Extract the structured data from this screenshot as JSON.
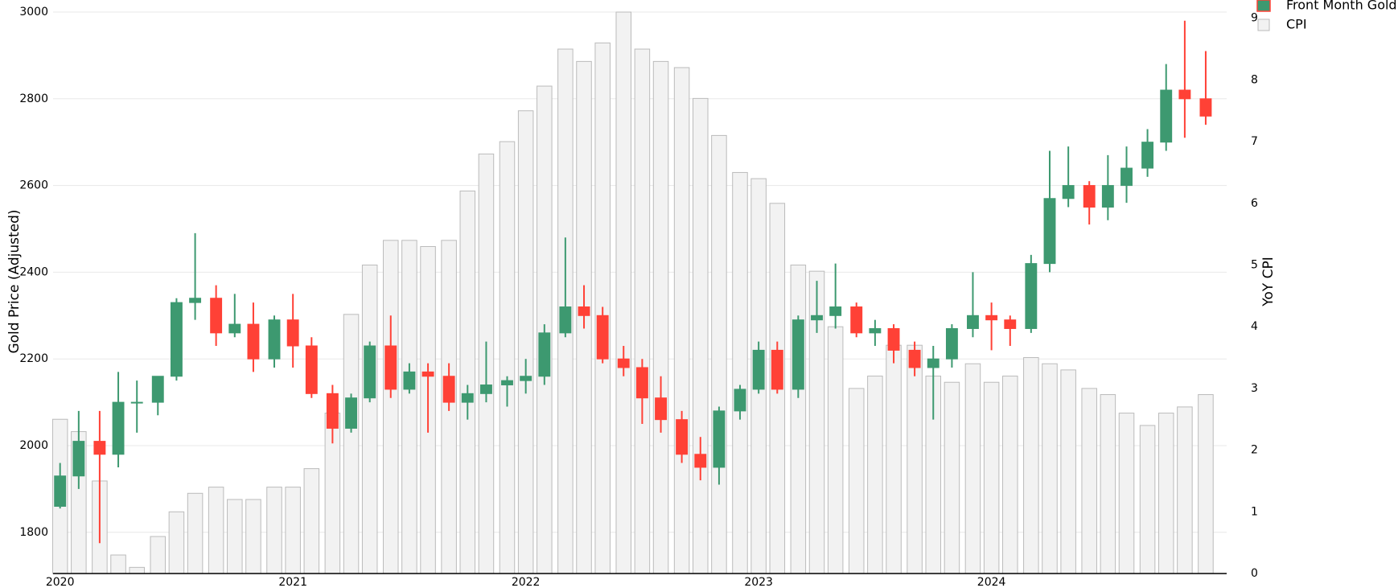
{
  "chart_data": {
    "type": "candlestick",
    "ylabel": "Gold Price (Adjusted)",
    "y2label": "YoY CPI",
    "x": [
      2020,
      2020.08,
      2020.17,
      2020.25,
      2020.33,
      2020.42,
      2020.5,
      2020.58,
      2020.67,
      2020.75,
      2020.83,
      2020.92,
      2021,
      2021.08,
      2021.17,
      2021.25,
      2021.33,
      2021.42,
      2021.5,
      2021.58,
      2021.67,
      2021.75,
      2021.83,
      2021.92,
      2022,
      2022.08,
      2022.17,
      2022.25,
      2022.33,
      2022.42,
      2022.5,
      2022.58,
      2022.67,
      2022.75,
      2022.83,
      2022.92,
      2023,
      2023.08,
      2023.17,
      2023.25,
      2023.33,
      2023.42,
      2023.5,
      2023.58,
      2023.67,
      2023.75,
      2023.83,
      2023.92,
      2024,
      2024.08,
      2024.17,
      2024.25,
      2024.33,
      2024.42,
      2024.5,
      2024.58,
      2024.67,
      2024.75,
      2024.83,
      2024.92
    ],
    "xlim": [
      2019.97,
      2025.01
    ],
    "xticks": [
      2020,
      2021,
      2022,
      2023,
      2024
    ],
    "ylim": [
      1705,
      3000
    ],
    "yticks": [
      1800,
      2000,
      2200,
      2400,
      2600,
      2800,
      3000
    ],
    "y2lim": [
      0,
      9.1
    ],
    "y2ticks": [
      0,
      1,
      2,
      3,
      4,
      5,
      6,
      7,
      8,
      9
    ],
    "grid": true,
    "legend": "top-right",
    "series": [
      {
        "name": "Front Month Gold",
        "increasing_color": "#3d9970",
        "decreasing_color": "#ff4136",
        "open": [
          1860,
          1930,
          2010,
          1980,
          2100,
          2100,
          2160,
          2330,
          2340,
          2260,
          2280,
          2200,
          2290,
          2230,
          2120,
          2040,
          2110,
          2230,
          2130,
          2170,
          2160,
          2100,
          2120,
          2140,
          2150,
          2160,
          2260,
          2320,
          2300,
          2200,
          2180,
          2110,
          2060,
          1980,
          1950,
          2080,
          2130,
          2220,
          2130,
          2290,
          2300,
          2320,
          2260,
          2270,
          2220,
          2180,
          2200,
          2270,
          2300,
          2290,
          2270,
          2420,
          2570,
          2600,
          2550,
          2600,
          2640,
          2700,
          2820,
          2800
        ],
        "high": [
          1960,
          2080,
          2080,
          2170,
          2150,
          2150,
          2340,
          2490,
          2370,
          2350,
          2330,
          2300,
          2350,
          2250,
          2140,
          2120,
          2240,
          2300,
          2190,
          2190,
          2190,
          2140,
          2240,
          2160,
          2200,
          2280,
          2480,
          2370,
          2320,
          2230,
          2200,
          2160,
          2080,
          2020,
          2090,
          2140,
          2240,
          2240,
          2300,
          2380,
          2420,
          2330,
          2290,
          2280,
          2240,
          2230,
          2280,
          2400,
          2330,
          2300,
          2440,
          2680,
          2690,
          2610,
          2670,
          2690,
          2730,
          2880,
          2980,
          2910
        ],
        "low": [
          1855,
          1900,
          1775,
          1950,
          2030,
          2070,
          2150,
          2290,
          2230,
          2250,
          2170,
          2180,
          2180,
          2110,
          2005,
          2030,
          2100,
          2110,
          2120,
          2030,
          2080,
          2060,
          2100,
          2090,
          2120,
          2140,
          2250,
          2270,
          2190,
          2160,
          2050,
          2030,
          1960,
          1920,
          1910,
          2060,
          2120,
          2120,
          2110,
          2260,
          2270,
          2250,
          2230,
          2190,
          2160,
          2060,
          2180,
          2250,
          2220,
          2230,
          2260,
          2400,
          2550,
          2510,
          2520,
          2560,
          2620,
          2680,
          2710,
          2740
        ],
        "close": [
          1930,
          2010,
          1980,
          2100,
          2100,
          2160,
          2330,
          2340,
          2260,
          2280,
          2200,
          2290,
          2230,
          2120,
          2040,
          2110,
          2230,
          2130,
          2170,
          2160,
          2100,
          2120,
          2140,
          2150,
          2160,
          2260,
          2320,
          2300,
          2200,
          2180,
          2110,
          2060,
          1980,
          1950,
          2080,
          2130,
          2220,
          2130,
          2290,
          2300,
          2320,
          2260,
          2270,
          2220,
          2180,
          2200,
          2270,
          2300,
          2290,
          2270,
          2420,
          2570,
          2600,
          2550,
          2600,
          2640,
          2700,
          2820,
          2800,
          2760
        ]
      },
      {
        "name": "CPI",
        "axis": "y2",
        "color": "#f2f2f2",
        "edge_color": "#bbbbbb",
        "values": [
          2.5,
          2.3,
          1.5,
          0.3,
          0.1,
          0.6,
          1.0,
          1.3,
          1.4,
          1.2,
          1.2,
          1.4,
          1.4,
          1.7,
          2.6,
          4.2,
          5.0,
          5.4,
          5.4,
          5.3,
          5.4,
          6.2,
          6.8,
          7.0,
          7.5,
          7.9,
          8.5,
          8.3,
          8.6,
          9.1,
          8.5,
          8.3,
          8.2,
          7.7,
          7.1,
          6.5,
          6.4,
          6.0,
          5.0,
          4.9,
          4.0,
          3.0,
          3.2,
          3.7,
          3.7,
          3.2,
          3.1,
          3.4,
          3.1,
          3.2,
          3.5,
          3.4,
          3.3,
          3.0,
          2.9,
          2.6,
          2.4,
          2.6,
          2.7,
          2.9
        ]
      }
    ]
  }
}
